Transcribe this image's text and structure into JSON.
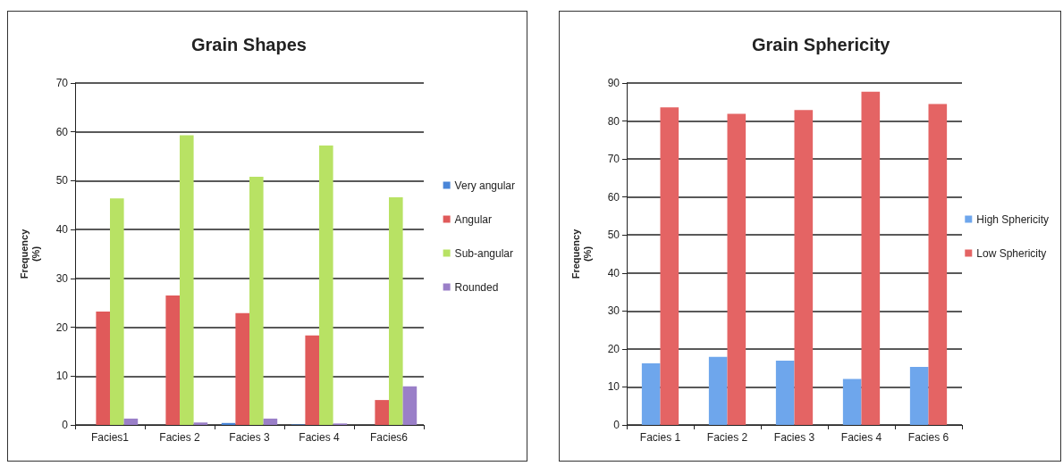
{
  "chart_data": [
    {
      "type": "bar",
      "title": "Grain Shapes",
      "ylabel": "Frequency\n(%)",
      "categories": [
        "Facies1",
        "Facies 2",
        "Facies 3",
        "Facies 4",
        "Facies6"
      ],
      "series": [
        {
          "name": "Very angular",
          "color": "#4a86d8",
          "values": [
            0,
            0,
            0.4,
            0.1,
            0
          ]
        },
        {
          "name": "Angular",
          "color": "#e05a5a",
          "values": [
            23.2,
            26.5,
            22.9,
            18.3,
            5.1
          ]
        },
        {
          "name": "Sub-angular",
          "color": "#b8e264",
          "values": [
            46.4,
            59.3,
            50.8,
            57.2,
            46.6
          ]
        },
        {
          "name": "Rounded",
          "color": "#9a7fc8",
          "values": [
            1.3,
            0.5,
            1.3,
            0.3,
            7.9
          ]
        }
      ],
      "ylim": [
        0,
        70
      ],
      "yticks": [
        0,
        10,
        20,
        30,
        40,
        50,
        60,
        70
      ],
      "grid": "y",
      "legend": "right"
    },
    {
      "type": "bar",
      "title": "Grain Sphericity",
      "ylabel": "Frequency\n(%)",
      "categories": [
        "Facies 1",
        "Facies 2",
        "Facies 3",
        "Facies 4",
        "Facies 6"
      ],
      "series": [
        {
          "name": "High Sphericity",
          "color": "#6ea6ec",
          "values": [
            16.2,
            17.9,
            16.9,
            12.1,
            15.3
          ]
        },
        {
          "name": "Low Sphericity",
          "color": "#e46464",
          "values": [
            83.6,
            81.9,
            82.9,
            87.7,
            84.5
          ]
        }
      ],
      "ylim": [
        0,
        90
      ],
      "yticks": [
        0,
        10,
        20,
        30,
        40,
        50,
        60,
        70,
        80,
        90
      ],
      "grid": "y",
      "legend": "right"
    }
  ]
}
